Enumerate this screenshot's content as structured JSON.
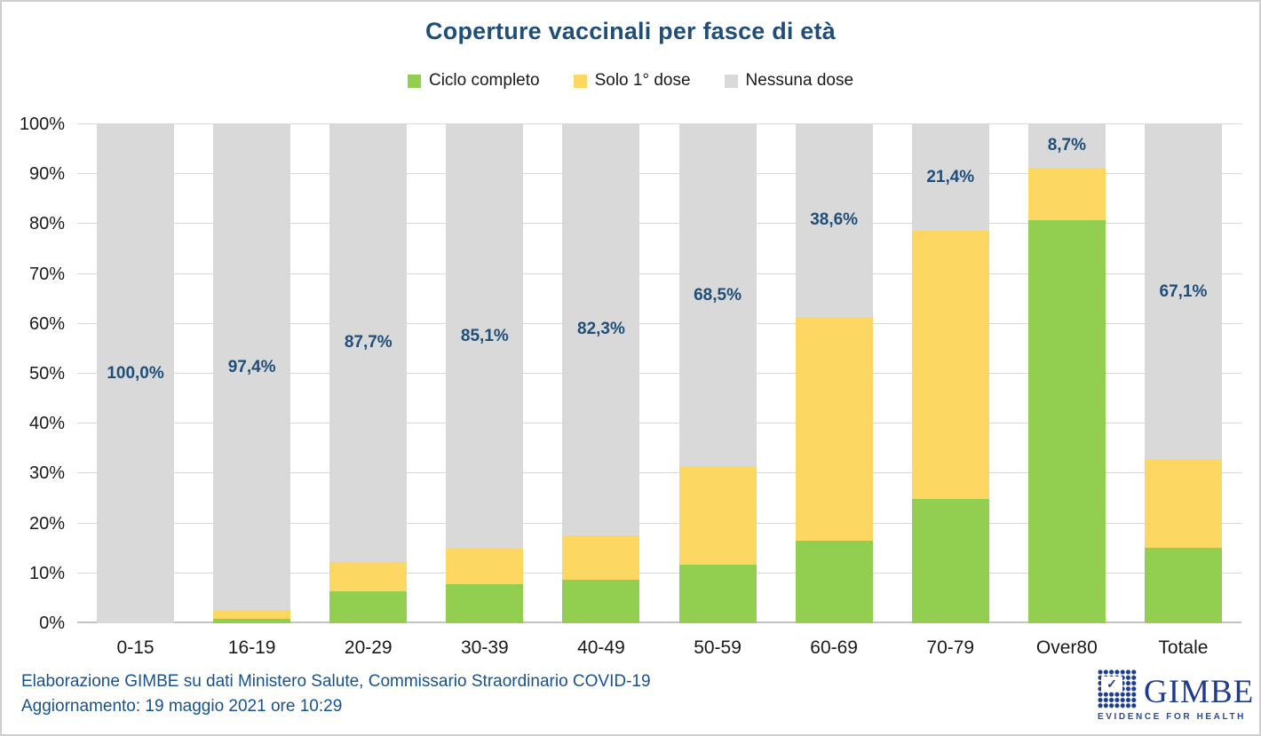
{
  "title": "Coperture vaccinali per fasce di età",
  "colors": {
    "title_blue": "#1F4E79",
    "data_label_blue": "#1F4E79",
    "footer_blue": "#17518F",
    "logo_blue": "#1F3D8C",
    "series_green": "#92CE50",
    "series_yellow": "#FCD863",
    "series_gray": "#D9D9D9",
    "gridline": "#D9D9D9"
  },
  "legend": {
    "items": [
      {
        "label": "Ciclo completo",
        "color": "#92CE50"
      },
      {
        "label": "Solo 1° dose",
        "color": "#FCD863"
      },
      {
        "label": "Nessuna dose",
        "color": "#D9D9D9"
      }
    ]
  },
  "chart_data": {
    "type": "bar",
    "stacked": true,
    "title": "Coperture vaccinali per fasce di età",
    "categories": [
      "0-15",
      "16-19",
      "20-29",
      "30-39",
      "40-49",
      "50-59",
      "60-69",
      "70-79",
      "Over80",
      "Totale"
    ],
    "series": [
      {
        "name": "Ciclo completo",
        "color": "#92CE50",
        "values": [
          0,
          0.9,
          6.4,
          7.8,
          8.7,
          11.8,
          16.6,
          25.0,
          80.7,
          15.2
        ]
      },
      {
        "name": "Solo 1° dose",
        "color": "#FCD863",
        "values": [
          0,
          1.7,
          5.9,
          7.1,
          9.0,
          19.7,
          44.8,
          53.6,
          10.6,
          17.7
        ]
      },
      {
        "name": "Nessuna dose",
        "color": "#D9D9D9",
        "values": [
          100,
          97.4,
          87.7,
          85.1,
          82.3,
          68.5,
          38.6,
          21.4,
          8.7,
          67.1
        ]
      }
    ],
    "data_labels": {
      "attached_to_series": "Nessuna dose",
      "values": [
        "100,0%",
        "97,4%",
        "87,7%",
        "85,1%",
        "82,3%",
        "68,5%",
        "38,6%",
        "21,4%",
        "8,7%",
        "67,1%"
      ],
      "color": "#1F4E79"
    },
    "y_ticks": [
      "0%",
      "10%",
      "20%",
      "30%",
      "40%",
      "50%",
      "60%",
      "70%",
      "80%",
      "90%",
      "100%"
    ],
    "ylim": [
      0,
      100
    ],
    "grid": true,
    "legend_position": "top",
    "xlabel": "",
    "ylabel": ""
  },
  "footer": {
    "line1": "Elaborazione GIMBE su dati Ministero Salute, Commissario Straordinario COVID-19",
    "line2": "Aggiornamento: 19 maggio 2021 ore 10:29"
  },
  "logo": {
    "check_icon": "✓",
    "name": "GIMBE",
    "tagline": "EVIDENCE FOR HEALTH"
  }
}
